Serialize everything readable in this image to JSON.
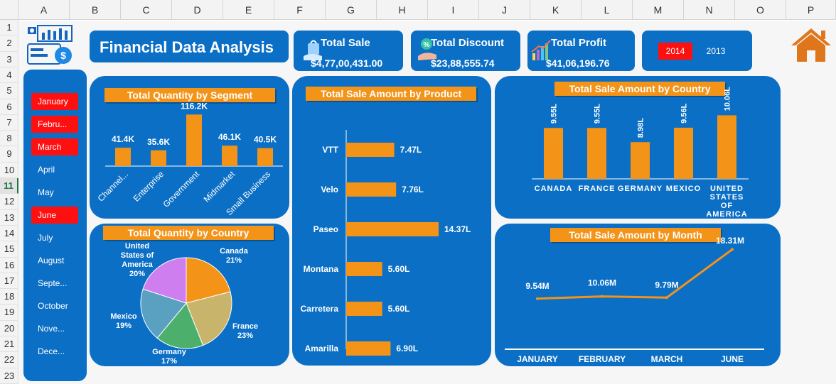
{
  "columns": [
    "A",
    "B",
    "C",
    "D",
    "E",
    "F",
    "G",
    "H",
    "I",
    "J",
    "K",
    "L",
    "M",
    "N",
    "O",
    "P"
  ],
  "rows": [
    "1",
    "2",
    "3",
    "4",
    "5",
    "6",
    "7",
    "8",
    "9",
    "10",
    "11",
    "12",
    "13",
    "14",
    "15",
    "16",
    "17",
    "18",
    "19",
    "20",
    "21",
    "22",
    "23"
  ],
  "selected_row": "11",
  "dashboard_title": "Financial Data Analysis",
  "kpis": {
    "total_sale": {
      "label": "Total Sale",
      "value": "$4,77,00,431.00"
    },
    "total_discount": {
      "label": "Total Discount",
      "value": "$23,88,555.74"
    },
    "total_profit": {
      "label": "Total Profit",
      "value": "$41,06,196.76"
    }
  },
  "years": [
    {
      "label": "2014",
      "selected": true
    },
    {
      "label": "2013",
      "selected": false
    }
  ],
  "months": [
    {
      "label": "January",
      "selected": true
    },
    {
      "label": "Febru...",
      "selected": true
    },
    {
      "label": "March",
      "selected": true
    },
    {
      "label": "April",
      "selected": false
    },
    {
      "label": "May",
      "selected": false
    },
    {
      "label": "June",
      "selected": true
    },
    {
      "label": "July",
      "selected": false
    },
    {
      "label": "August",
      "selected": false
    },
    {
      "label": "Septe...",
      "selected": false
    },
    {
      "label": "October",
      "selected": false
    },
    {
      "label": "Nove...",
      "selected": false
    },
    {
      "label": "Dece...",
      "selected": false
    }
  ],
  "colors": {
    "panel": "#0b6fc6",
    "accent": "#f39318",
    "selected": "#ff1010",
    "home": "#e0761c"
  },
  "chart_data": [
    {
      "type": "bar",
      "title": "Total Quantity by Segment",
      "categories": [
        "Channel...",
        "Enterprise",
        "Government",
        "Midmarket",
        "Small Business"
      ],
      "values": [
        41.4,
        35.6,
        116.2,
        46.1,
        40.5
      ],
      "data_labels": [
        "41.4K",
        "35.6K",
        "116.2K",
        "46.1K",
        "40.5K"
      ],
      "ylim": [
        0,
        120
      ]
    },
    {
      "type": "pie",
      "title": "Total Quantity by Country",
      "categories": [
        "Canada",
        "France",
        "Germany",
        "Mexico",
        "United States of America"
      ],
      "values": [
        21,
        23,
        17,
        19,
        20
      ],
      "data_labels": [
        "21%",
        "23%",
        "17%",
        "19%",
        "20%"
      ],
      "slice_colors": [
        "#f39318",
        "#c8b46a",
        "#4caf6c",
        "#5aa0c0",
        "#cf7ef0"
      ]
    },
    {
      "type": "bar",
      "orientation": "horizontal",
      "title": "Total Sale Amount by Product",
      "categories": [
        "VTT",
        "Velo",
        "Paseo",
        "Montana",
        "Carretera",
        "Amarilla"
      ],
      "values": [
        7.47,
        7.76,
        14.37,
        5.6,
        5.6,
        6.9
      ],
      "data_labels": [
        "7.47L",
        "7.76L",
        "14.37L",
        "5.60L",
        "5.60L",
        "6.90L"
      ],
      "xlim": [
        0,
        16
      ]
    },
    {
      "type": "bar",
      "title": "Total Sale Amount by Country",
      "categories": [
        "CANADA",
        "FRANCE",
        "GERMANY",
        "MEXICO",
        "UNITED STATES OF AMERICA"
      ],
      "category_lines": [
        [
          "CANADA"
        ],
        [
          "FRANCE"
        ],
        [
          "GERMANY"
        ],
        [
          "MEXICO"
        ],
        [
          "UNITED",
          "STATES",
          "OF",
          "AMERICA"
        ]
      ],
      "values": [
        9.55,
        9.55,
        8.98,
        9.56,
        10.06
      ],
      "data_labels": [
        "9.55L",
        "9.55L",
        "8.98L",
        "9.56L",
        "10.06L"
      ],
      "ylim": [
        7.5,
        10.5
      ]
    },
    {
      "type": "line",
      "title": "Total Sale Amount  by Month",
      "categories": [
        "JANUARY",
        "FEBRUARY",
        "MARCH",
        "JUNE"
      ],
      "values": [
        9.54,
        10.06,
        9.79,
        18.31
      ],
      "data_labels": [
        "9.54M",
        "10.06M",
        "9.79M",
        "18.31M"
      ],
      "ylim": [
        0,
        20
      ]
    }
  ]
}
